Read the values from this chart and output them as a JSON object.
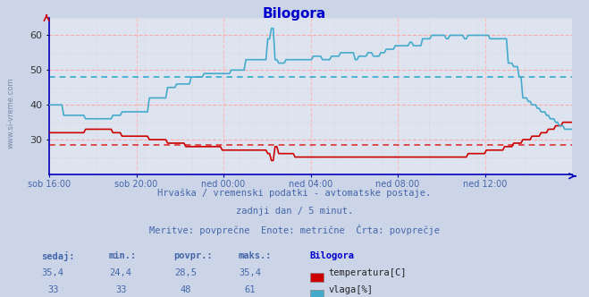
{
  "title": "Bilogora",
  "title_color": "#0000cc",
  "bg_color": "#ccd5e8",
  "plot_bg_color": "#dde4f0",
  "grid_color_h": "#ffaaaa",
  "grid_color_v": "#ffbbbb",
  "grid_color_vminor": "#ddcccc",
  "ylim": [
    20,
    65
  ],
  "yticks": [
    30,
    40,
    50,
    60
  ],
  "xtick_labels": [
    "sob 16:00",
    "sob 20:00",
    "ned 00:00",
    "ned 04:00",
    "ned 08:00",
    "ned 12:00"
  ],
  "temp_color": "#cc0000",
  "hum_color": "#44aacc",
  "avg_temp_color": "#dd3333",
  "avg_hum_color": "#33aacc",
  "avg_temp": 28.5,
  "avg_hum": 48.0,
  "watermark": "www.si-vreme.com",
  "watermark_color": "#7788aa",
  "subtitle1": "Hrvaška / vremenski podatki - avtomatske postaje.",
  "subtitle2": "zadnji dan / 5 minut.",
  "subtitle3": "Meritve: povprečne  Enote: metrične  Črta: povprečje",
  "subtitle_color": "#4466aa",
  "table_header": [
    "sedaj:",
    "min.:",
    "povpr.:",
    "maks.:",
    "Bilogora"
  ],
  "table_temp": [
    "35,4",
    "24,4",
    "28,5",
    "35,4"
  ],
  "table_hum": [
    "33",
    "33",
    "48",
    "61"
  ],
  "table_color": "#4466aa",
  "legend_temp": "temperatura[C]",
  "legend_hum": "vlaga[%]",
  "axis_color": "#0000bb",
  "n_points": 288
}
